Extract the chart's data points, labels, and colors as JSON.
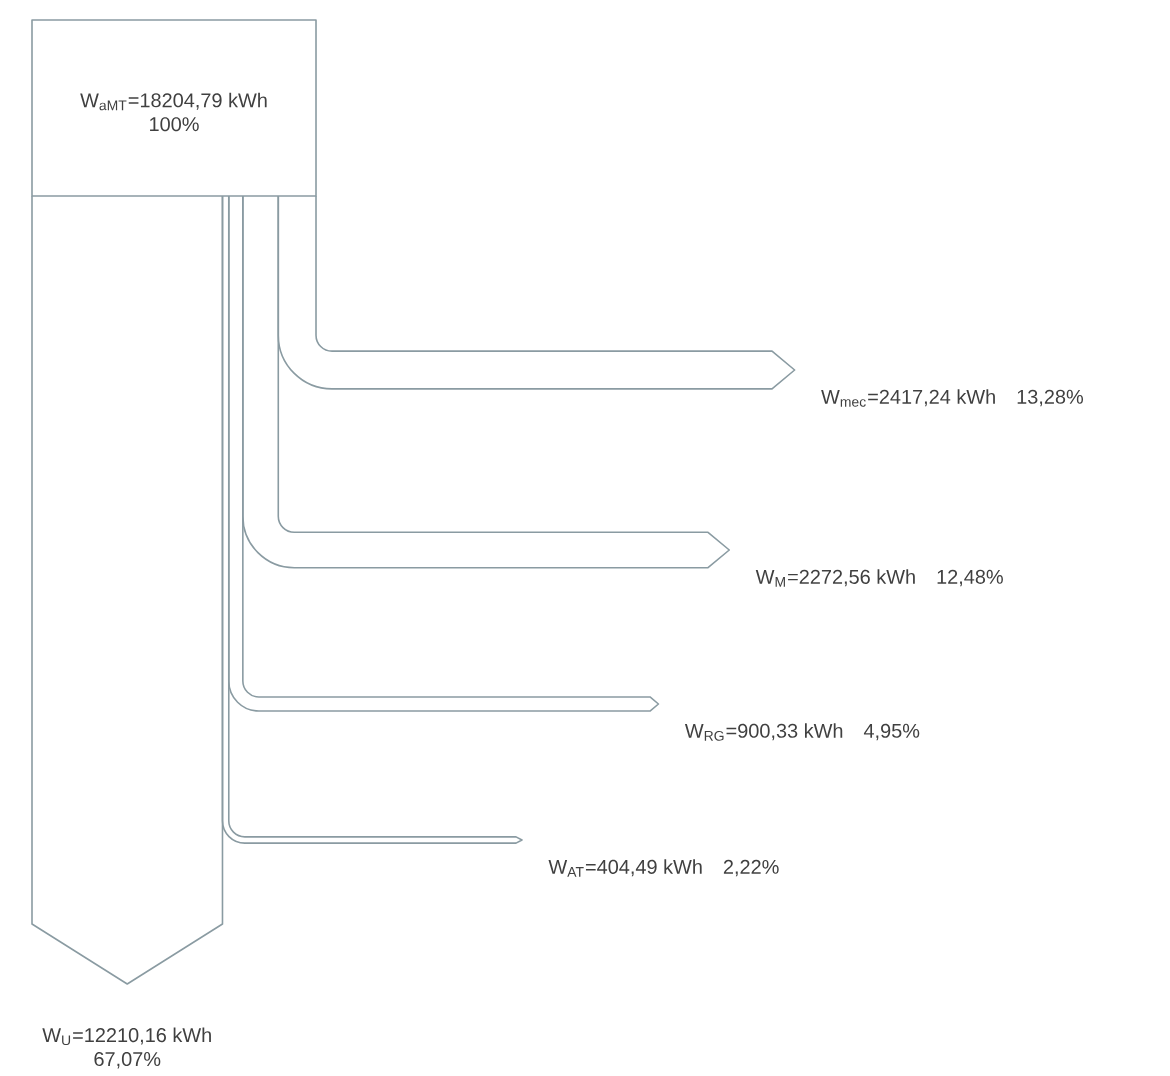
{
  "chart_data": {
    "type": "other",
    "color": "#8a9ba2",
    "categories": [
      "W$_{aMT}$",
      "W$_{mec}$",
      "W$_{M}$",
      "W$_{RG}$",
      "W$_{AT}$",
      "W$_{U}$"
    ],
    "series": [
      {
        "values": [
          18204.79,
          2417.24,
          2272.56,
          900.33,
          404.49,
          12210.16
        ],
        "value_labels": [
          "=18204,79 kWh",
          "=2417,24 kWh",
          "=2272,56 kWh",
          "=900,33 kWh",
          "=404,49 kWh",
          "=12210,16 kWh"
        ]
      },
      {
        "values": [
          100,
          13.28,
          12.48,
          4.95,
          2.22,
          67.07
        ],
        "value_labels": [
          "100%",
          "13,28%",
          "12,48%",
          "4,95%",
          "2,22%",
          "67,07%"
        ]
      }
    ]
  }
}
